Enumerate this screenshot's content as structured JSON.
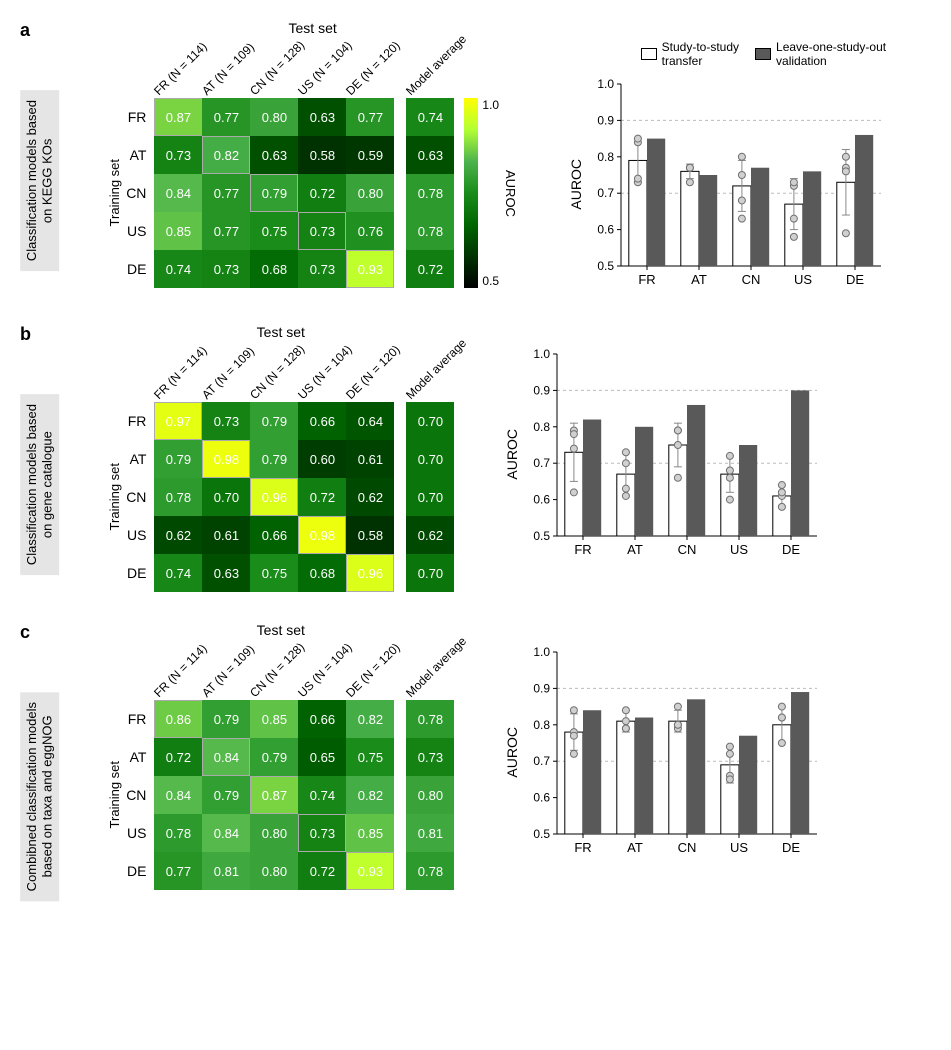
{
  "colors": {
    "bar_open_fill": "#ffffff",
    "bar_open_stroke": "#000000",
    "bar_filled": "#595959",
    "point_fill": "#d0d0d0",
    "point_stroke": "#707070",
    "grid_dash": "#bbbbbb",
    "axis": "#000000",
    "heatmap_stops": [
      "#000000",
      "#003300",
      "#006600",
      "#1a8c1a",
      "#4db34d",
      "#b3ff33",
      "#ffff00"
    ]
  },
  "global": {
    "test_set_title": "Test set",
    "training_set_label": "Training set",
    "colorbar_title": "AUROC",
    "colorbar_top": "1.0",
    "colorbar_bottom": "0.5",
    "y_axis_label": "AUROC",
    "legend_open": "Study-to-study\ntransfer",
    "legend_filled": "Leave-one-study-out\nvalidation",
    "bar_categories": [
      "FR",
      "AT",
      "CN",
      "US",
      "DE"
    ],
    "row_labels": [
      "FR",
      "AT",
      "CN",
      "US",
      "DE"
    ],
    "col_headers": [
      "FR (N = 114)",
      "AT (N = 109)",
      "CN (N = 128)",
      "US (N = 104)",
      "DE (N = 120)",
      "Model average"
    ],
    "y_ticks": [
      0.5,
      0.6,
      0.7,
      0.8,
      0.9,
      1.0
    ],
    "y_tick_labels": [
      "0.5",
      "0.6",
      "0.7",
      "0.8",
      "0.9",
      "1.0"
    ]
  },
  "panels": [
    {
      "id": "a",
      "side_label": "Classification models based\non KEGG KOs",
      "show_colorbar": true,
      "show_legend": true,
      "matrix": [
        [
          0.87,
          0.77,
          0.8,
          0.63,
          0.77
        ],
        [
          0.73,
          0.82,
          0.63,
          0.58,
          0.59
        ],
        [
          0.84,
          0.77,
          0.79,
          0.72,
          0.8
        ],
        [
          0.85,
          0.77,
          0.75,
          0.73,
          0.76
        ],
        [
          0.74,
          0.73,
          0.68,
          0.73,
          0.93
        ]
      ],
      "avg": [
        0.74,
        0.63,
        0.78,
        0.78,
        0.72
      ],
      "bars_open": [
        0.79,
        0.76,
        0.72,
        0.67,
        0.73
      ],
      "bars_open_err": [
        0.06,
        0.02,
        0.07,
        0.07,
        0.09
      ],
      "bars_filled": [
        0.85,
        0.75,
        0.77,
        0.76,
        0.86
      ],
      "points": [
        [
          0.73,
          0.84,
          0.85,
          0.74
        ],
        [
          0.77,
          0.77,
          0.77,
          0.73
        ],
        [
          0.8,
          0.63,
          0.75,
          0.68
        ],
        [
          0.63,
          0.58,
          0.72,
          0.73
        ],
        [
          0.77,
          0.59,
          0.8,
          0.76
        ]
      ]
    },
    {
      "id": "b",
      "side_label": "Classification models based\non gene catalogue",
      "show_colorbar": false,
      "show_legend": false,
      "matrix": [
        [
          0.97,
          0.73,
          0.79,
          0.66,
          0.64
        ],
        [
          0.79,
          0.98,
          0.79,
          0.6,
          0.61
        ],
        [
          0.78,
          0.7,
          0.96,
          0.72,
          0.62
        ],
        [
          0.62,
          0.61,
          0.66,
          0.98,
          0.58
        ],
        [
          0.74,
          0.63,
          0.75,
          0.68,
          0.96
        ]
      ],
      "avg": [
        0.7,
        0.7,
        0.7,
        0.62,
        0.7
      ],
      "bars_open": [
        0.73,
        0.67,
        0.75,
        0.67,
        0.61
      ],
      "bars_open_err": [
        0.08,
        0.06,
        0.06,
        0.05,
        0.03
      ],
      "bars_filled": [
        0.82,
        0.8,
        0.86,
        0.75,
        0.9
      ],
      "points": [
        [
          0.79,
          0.78,
          0.62,
          0.74
        ],
        [
          0.73,
          0.7,
          0.61,
          0.63
        ],
        [
          0.79,
          0.79,
          0.66,
          0.75
        ],
        [
          0.66,
          0.6,
          0.72,
          0.68
        ],
        [
          0.64,
          0.61,
          0.62,
          0.58
        ]
      ]
    },
    {
      "id": "c",
      "side_label": "Combibned classification models\nbased on taxa and eggNOG",
      "show_colorbar": false,
      "show_legend": false,
      "matrix": [
        [
          0.86,
          0.79,
          0.85,
          0.66,
          0.82
        ],
        [
          0.72,
          0.84,
          0.79,
          0.65,
          0.75
        ],
        [
          0.84,
          0.79,
          0.87,
          0.74,
          0.82
        ],
        [
          0.78,
          0.84,
          0.8,
          0.73,
          0.85
        ],
        [
          0.77,
          0.81,
          0.8,
          0.72,
          0.93
        ]
      ],
      "avg": [
        0.78,
        0.73,
        0.8,
        0.81,
        0.78
      ],
      "bars_open": [
        0.78,
        0.81,
        0.81,
        0.69,
        0.8
      ],
      "bars_open_err": [
        0.05,
        0.03,
        0.03,
        0.05,
        0.05
      ],
      "bars_filled": [
        0.84,
        0.82,
        0.87,
        0.77,
        0.89
      ],
      "points": [
        [
          0.72,
          0.84,
          0.78,
          0.77
        ],
        [
          0.79,
          0.79,
          0.84,
          0.81
        ],
        [
          0.85,
          0.79,
          0.8,
          0.8
        ],
        [
          0.66,
          0.65,
          0.74,
          0.72
        ],
        [
          0.82,
          0.75,
          0.82,
          0.85
        ]
      ]
    }
  ]
}
